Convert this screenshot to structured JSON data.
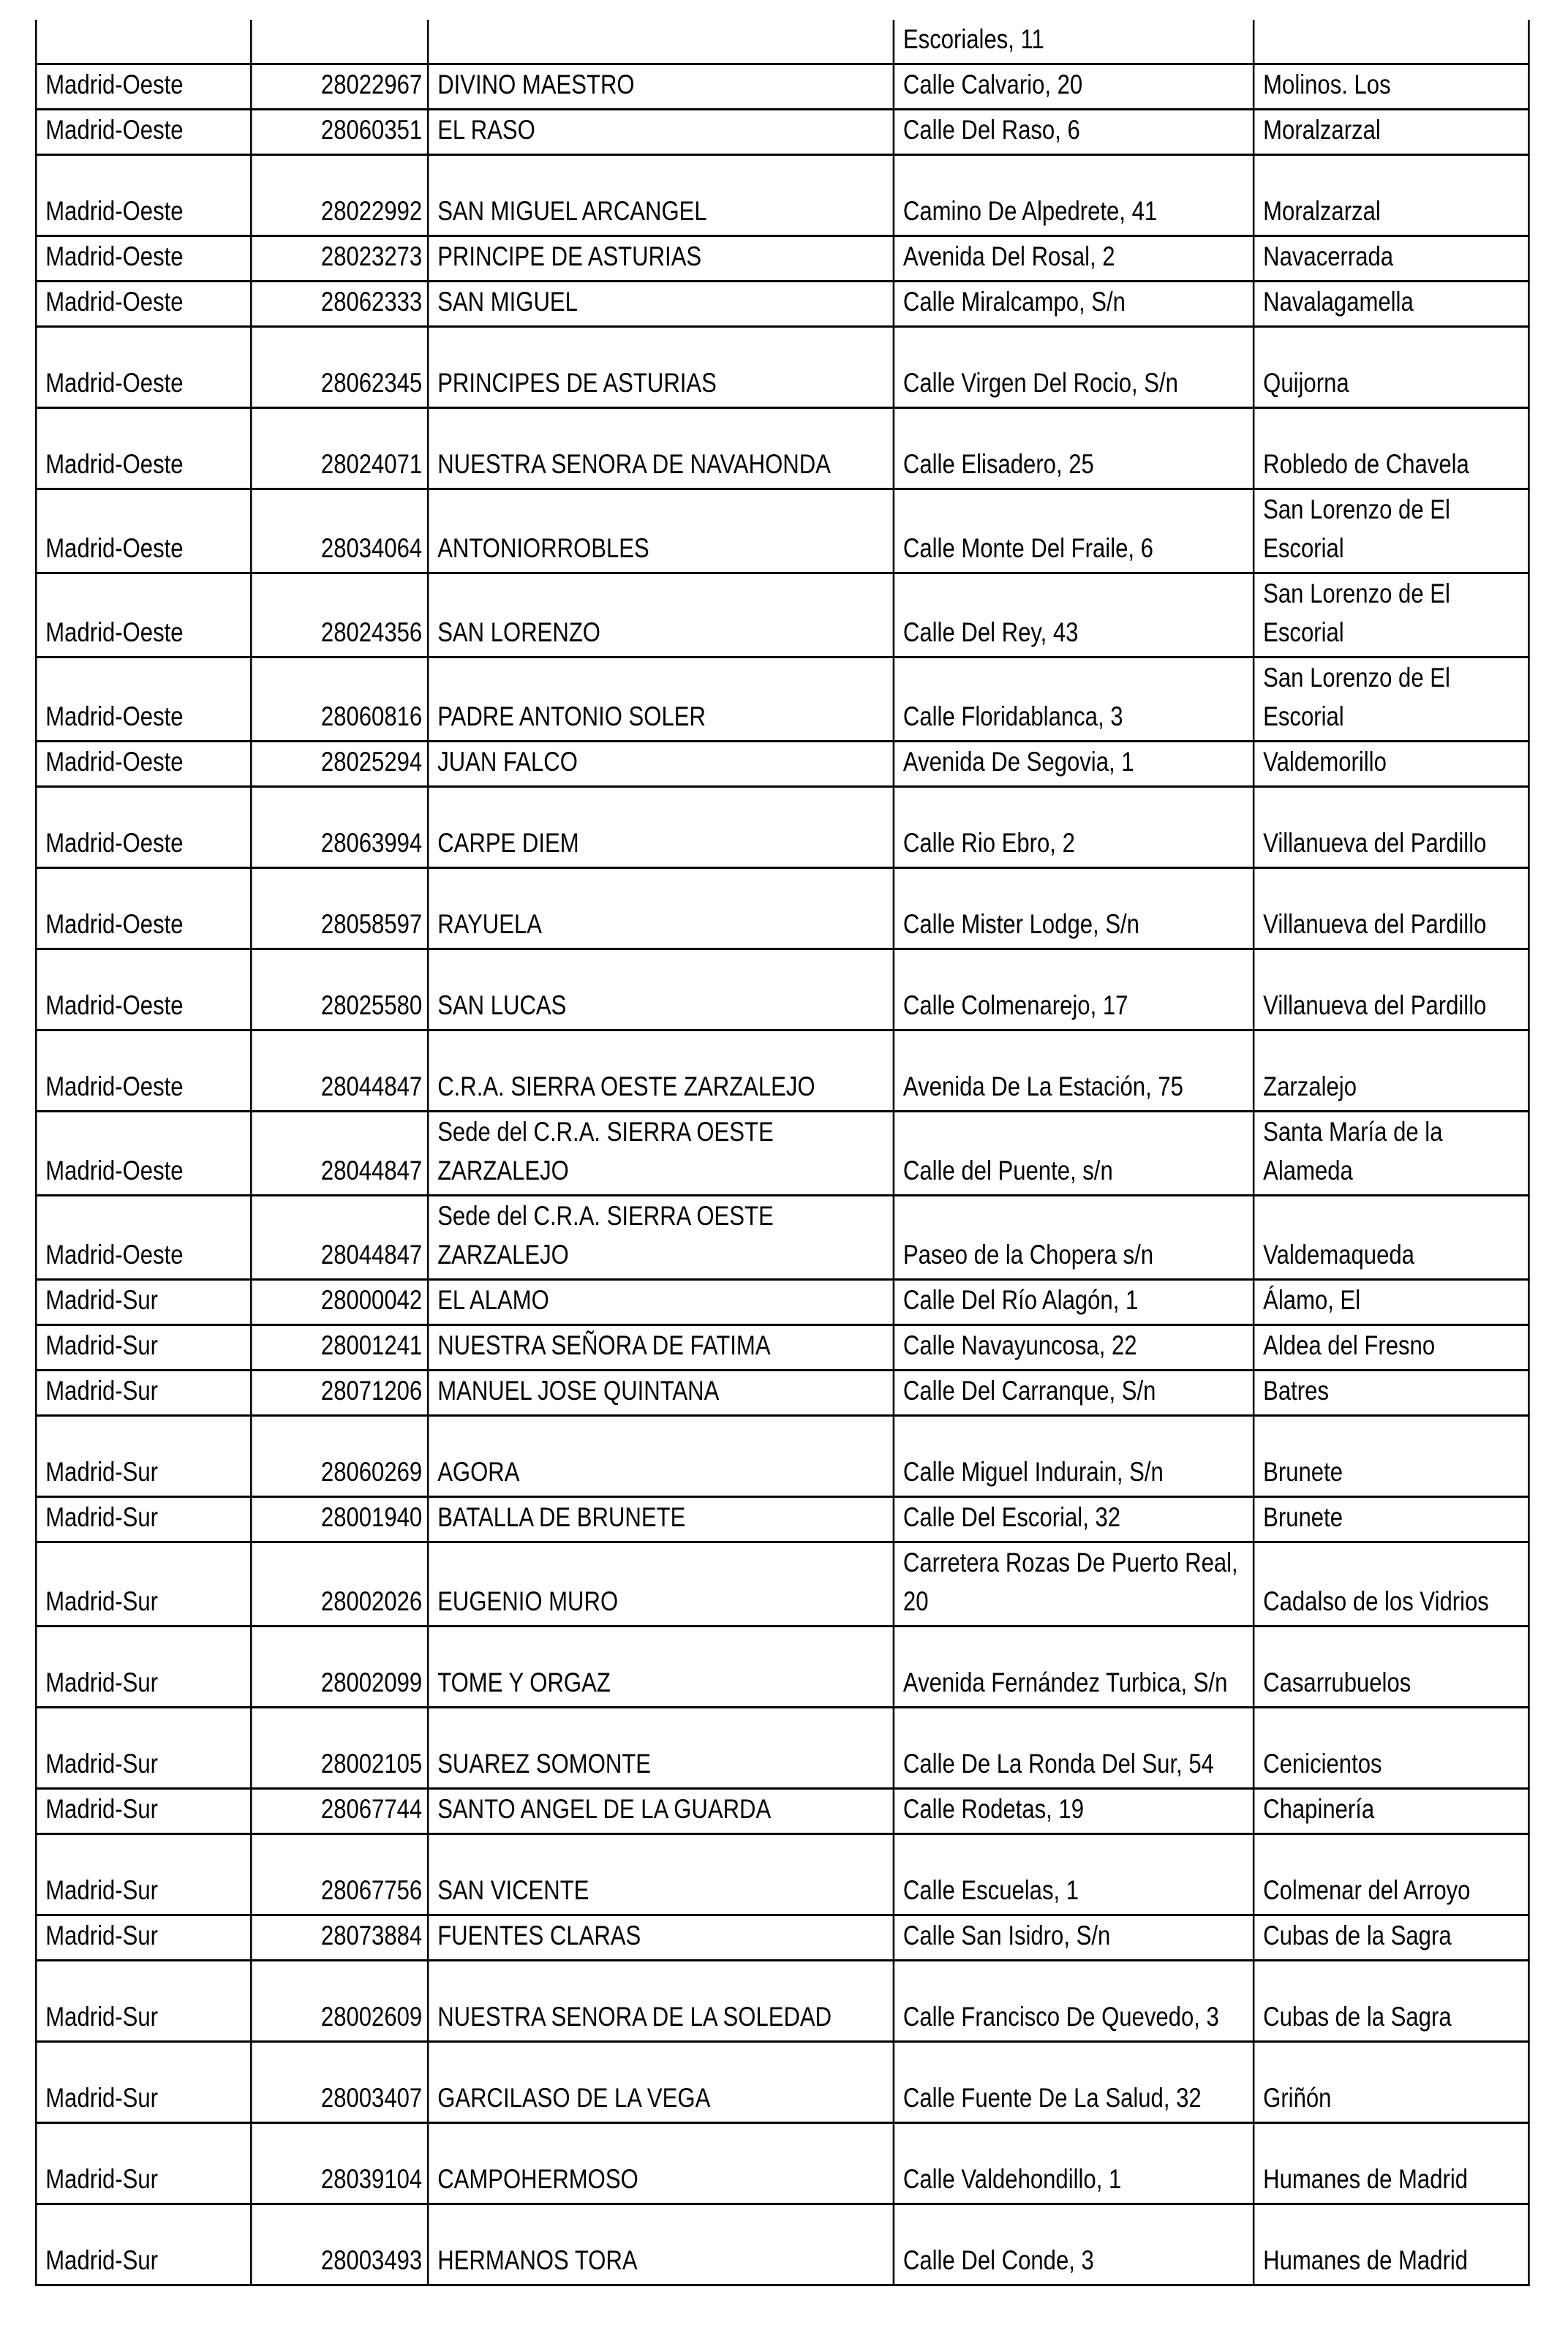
{
  "table": {
    "rows": [
      [
        "",
        "",
        "",
        "Escoriales, 11",
        ""
      ],
      [
        "Madrid-Oeste",
        "28022967",
        "DIVINO MAESTRO",
        "Calle Calvario, 20",
        "Molinos. Los"
      ],
      [
        "Madrid-Oeste",
        "28060351",
        "EL RASO",
        "Calle Del Raso, 6",
        "Moralzarzal"
      ],
      [
        "Madrid-Oeste",
        "28022992",
        "SAN MIGUEL ARCANGEL",
        "Camino De Alpedrete, 41",
        "Moralzarzal"
      ],
      [
        "Madrid-Oeste",
        "28023273",
        "PRINCIPE DE ASTURIAS",
        "Avenida Del Rosal, 2",
        "Navacerrada"
      ],
      [
        "Madrid-Oeste",
        "28062333",
        "SAN MIGUEL",
        "Calle Miralcampo, S/n",
        "Navalagamella"
      ],
      [
        "Madrid-Oeste",
        "28062345",
        "PRINCIPES DE ASTURIAS",
        "Calle Virgen Del Rocio, S/n",
        "Quijorna"
      ],
      [
        "Madrid-Oeste",
        "28024071",
        "NUESTRA SENORA DE NAVAHONDA",
        "Calle Elisadero, 25",
        "Robledo de Chavela"
      ],
      [
        "Madrid-Oeste",
        "28034064",
        "ANTONIORROBLES",
        "Calle Monte Del Fraile, 6",
        "San Lorenzo de El Escorial"
      ],
      [
        "Madrid-Oeste",
        "28024356",
        "SAN LORENZO",
        "Calle Del Rey, 43",
        "San Lorenzo de El Escorial"
      ],
      [
        "Madrid-Oeste",
        "28060816",
        "PADRE ANTONIO SOLER",
        "Calle Floridablanca, 3",
        "San Lorenzo de El Escorial"
      ],
      [
        "Madrid-Oeste",
        "28025294",
        "JUAN FALCO",
        "Avenida De Segovia, 1",
        "Valdemorillo"
      ],
      [
        "Madrid-Oeste",
        "28063994",
        "CARPE DIEM",
        "Calle Rio Ebro, 2",
        "Villanueva del Pardillo"
      ],
      [
        "Madrid-Oeste",
        "28058597",
        "RAYUELA",
        "Calle Mister Lodge, S/n",
        "Villanueva del Pardillo"
      ],
      [
        "Madrid-Oeste",
        "28025580",
        "SAN LUCAS",
        "Calle Colmenarejo, 17",
        "Villanueva del Pardillo"
      ],
      [
        "Madrid-Oeste",
        "28044847",
        "C.R.A. SIERRA OESTE ZARZALEJO",
        "Avenida De La Estación, 75",
        "Zarzalejo"
      ],
      [
        "Madrid-Oeste",
        "28044847",
        "Sede del C.R.A. SIERRA OESTE ZARZALEJO",
        "Calle del Puente, s/n",
        "Santa María de la Alameda"
      ],
      [
        "Madrid-Oeste",
        "28044847",
        "Sede del C.R.A. SIERRA OESTE ZARZALEJO",
        "Paseo de la Chopera s/n",
        "Valdemaqueda"
      ],
      [
        "Madrid-Sur",
        "28000042",
        "EL ALAMO",
        "Calle Del Río Alagón, 1",
        "Álamo, El"
      ],
      [
        "Madrid-Sur",
        "28001241",
        "NUESTRA SEÑORA DE FATIMA",
        "Calle Navayuncosa, 22",
        "Aldea del Fresno"
      ],
      [
        "Madrid-Sur",
        "28071206",
        "MANUEL JOSE QUINTANA",
        "Calle Del Carranque, S/n",
        "Batres"
      ],
      [
        "Madrid-Sur",
        "28060269",
        "AGORA",
        "Calle Miguel Indurain, S/n",
        "Brunete"
      ],
      [
        "Madrid-Sur",
        "28001940",
        "BATALLA DE BRUNETE",
        "Calle Del Escorial, 32",
        "Brunete"
      ],
      [
        "Madrid-Sur",
        "28002026",
        "EUGENIO MURO",
        "Carretera Rozas De Puerto Real, 20",
        "Cadalso de los Vidrios"
      ],
      [
        "Madrid-Sur",
        "28002099",
        "TOME Y ORGAZ",
        "Avenida Fernández Turbica, S/n",
        "Casarrubuelos"
      ],
      [
        "Madrid-Sur",
        "28002105",
        "SUAREZ SOMONTE",
        "Calle De La Ronda Del Sur, 54",
        "Cenicientos"
      ],
      [
        "Madrid-Sur",
        "28067744",
        "SANTO ANGEL DE LA GUARDA",
        "Calle Rodetas, 19",
        "Chapinería"
      ],
      [
        "Madrid-Sur",
        "28067756",
        "SAN VICENTE",
        "Calle Escuelas, 1",
        "Colmenar del Arroyo"
      ],
      [
        "Madrid-Sur",
        "28073884",
        "FUENTES CLARAS",
        "Calle San Isidro, S/n",
        "Cubas de la Sagra"
      ],
      [
        "Madrid-Sur",
        "28002609",
        "NUESTRA SENORA DE LA SOLEDAD",
        "Calle Francisco De Quevedo, 3",
        "Cubas de la Sagra"
      ],
      [
        "Madrid-Sur",
        "28003407",
        "GARCILASO DE LA VEGA",
        "Calle Fuente De La Salud, 32",
        "Griñón"
      ],
      [
        "Madrid-Sur",
        "28039104",
        "CAMPOHERMOSO",
        "Calle Valdehondillo, 1",
        "Humanes de Madrid"
      ],
      [
        "Madrid-Sur",
        "28003493",
        "HERMANOS TORA",
        "Calle Del Conde, 3",
        "Humanes de Madrid"
      ]
    ]
  }
}
